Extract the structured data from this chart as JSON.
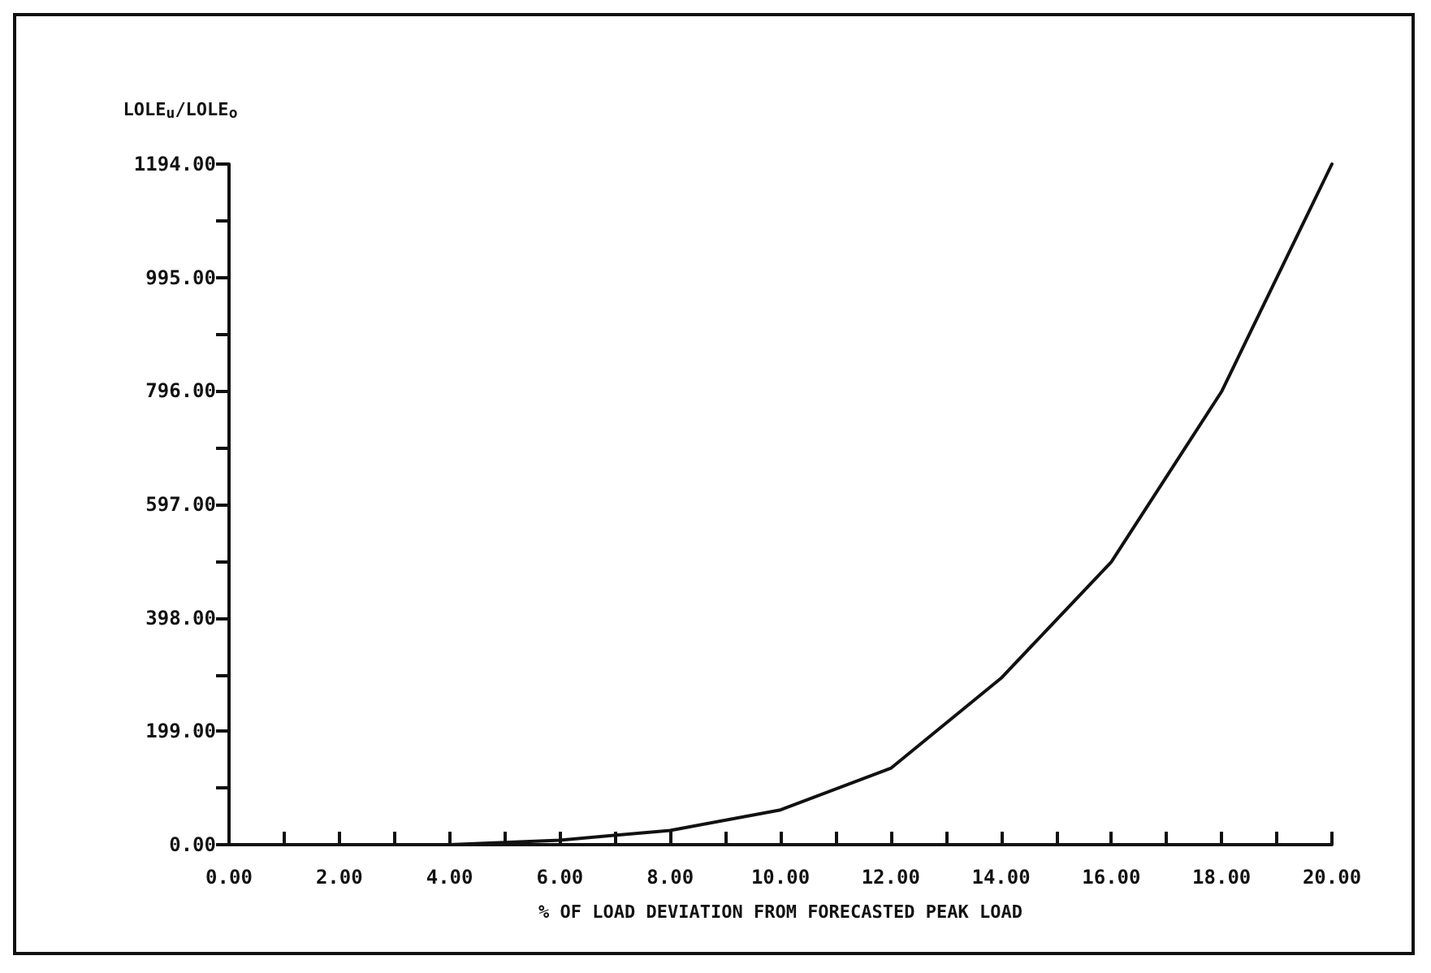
{
  "chart_data": {
    "type": "line",
    "xlabel": "% OF LOAD DEVIATION FROM FORECASTED PEAK LOAD",
    "ylabel": "LOLE$_{u}$/LOLE$_{o}$",
    "x": [
      0,
      2,
      4,
      6,
      8,
      10,
      12,
      14,
      16,
      18,
      20
    ],
    "series": [
      {
        "color": "#111111",
        "values": [
          0,
          0,
          0,
          8,
          25,
          61,
          134,
          292,
          496,
          795,
          1194
        ]
      }
    ],
    "xlim": [
      0,
      20
    ],
    "xticks": [
      {
        "value": 0,
        "label": "0.00"
      },
      {
        "value": 2,
        "label": "2.00"
      },
      {
        "value": 4,
        "label": "4.00"
      },
      {
        "value": 6,
        "label": "6.00"
      },
      {
        "value": 8,
        "label": "8.00"
      },
      {
        "value": 10,
        "label": "10.00"
      },
      {
        "value": 12,
        "label": "12.00"
      },
      {
        "value": 14,
        "label": "14.00"
      },
      {
        "value": 16,
        "label": "16.00"
      },
      {
        "value": 18,
        "label": "18.00"
      },
      {
        "value": 20,
        "label": "20.00"
      }
    ],
    "ylim": [
      0,
      1194
    ],
    "yticks": [
      {
        "value": 0,
        "label": "0.00"
      },
      {
        "value": 199,
        "label": "199.00"
      },
      {
        "value": 398,
        "label": "398.00"
      },
      {
        "value": 597,
        "label": "597.00"
      },
      {
        "value": 796,
        "label": "796.00"
      },
      {
        "value": 995,
        "label": "995.00"
      },
      {
        "value": 1194,
        "label": "1194.00"
      }
    ],
    "marker": "none",
    "line_style": "solid"
  }
}
